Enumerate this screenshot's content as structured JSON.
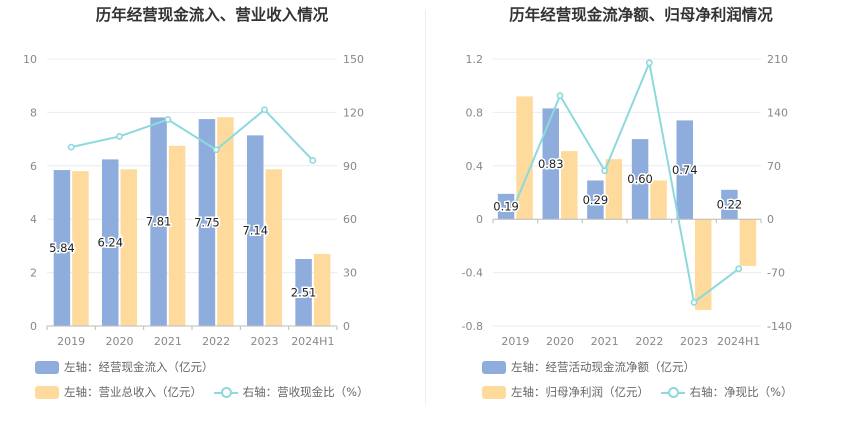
{
  "colors": {
    "bar_primary": "#8eaddd",
    "bar_secondary": "#fedb9c",
    "line": "#8dd9dd",
    "grid": "#e9ecf3",
    "axis": "#bbbbbb"
  },
  "chart_data": [
    {
      "type": "bar",
      "title": "历年经营现金流入、营业收入情况",
      "categories": [
        "2019",
        "2020",
        "2021",
        "2022",
        "2023",
        "2024H1"
      ],
      "y_left": {
        "ylim": [
          0,
          10
        ],
        "ticks": [
          0,
          2,
          4,
          6,
          8,
          10
        ]
      },
      "y_right": {
        "ylim": [
          0,
          150
        ],
        "ticks": [
          0,
          30,
          60,
          90,
          120,
          150
        ]
      },
      "grid": true,
      "series": [
        {
          "name": "左轴：经营现金流入（亿元）",
          "type": "bar",
          "axis": "left",
          "values": [
            5.84,
            6.24,
            7.81,
            7.75,
            7.14,
            2.51
          ],
          "show_labels": true
        },
        {
          "name": "左轴：营业总收入（亿元）",
          "type": "bar",
          "axis": "left",
          "values": [
            5.8,
            5.87,
            6.75,
            7.82,
            5.87,
            2.7
          ],
          "show_labels": false
        },
        {
          "name": "右轴：营收现金比（%）",
          "type": "line",
          "axis": "right",
          "values": [
            100.5,
            106.5,
            116,
            99,
            121.5,
            93
          ]
        }
      ],
      "legend_position": "bottom-left"
    },
    {
      "type": "bar",
      "title": "历年经营现金流净额、归母净利润情况",
      "categories": [
        "2019",
        "2020",
        "2021",
        "2022",
        "2023",
        "2024H1"
      ],
      "y_left": {
        "ylim": [
          -0.8,
          1.2
        ],
        "ticks": [
          -0.8,
          -0.4,
          0,
          0.4,
          0.8,
          1.2
        ]
      },
      "y_right": {
        "ylim": [
          -140,
          210
        ],
        "ticks": [
          -140,
          -70,
          0,
          70,
          140,
          210
        ]
      },
      "grid": true,
      "series": [
        {
          "name": "左轴：经营活动现金流净额（亿元）",
          "type": "bar",
          "axis": "left",
          "values": [
            0.19,
            0.83,
            0.29,
            0.6,
            0.74,
            0.22
          ],
          "show_labels": true
        },
        {
          "name": "左轴：归母净利润（亿元）",
          "type": "bar",
          "axis": "left",
          "values": [
            0.92,
            0.51,
            0.45,
            0.29,
            -0.68,
            -0.35
          ],
          "show_labels": false
        },
        {
          "name": "右轴：净现比（%）",
          "type": "line",
          "axis": "right",
          "values": [
            20.5,
            162,
            63.5,
            205,
            -109,
            -65
          ]
        }
      ],
      "legend_position": "bottom-left"
    }
  ]
}
